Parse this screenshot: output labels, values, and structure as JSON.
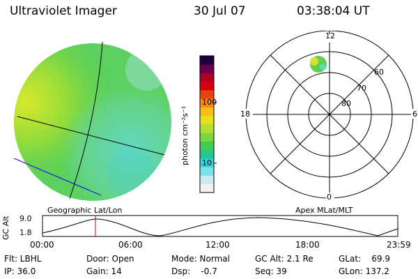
{
  "header": {
    "title": "Ultraviolet Imager",
    "date": "30 Jul 07",
    "time": "03:38:04 UT"
  },
  "colorbar": {
    "label": "photon cm⁻²s⁻¹",
    "ticks": [
      "100",
      "10"
    ],
    "colors": [
      "#f2f2f2",
      "#c8ecf0",
      "#7ce0e6",
      "#2fd4d8",
      "#22c890",
      "#40cc50",
      "#7ad640",
      "#b0e030",
      "#e6e020",
      "#f6c018",
      "#f48a10",
      "#e84410",
      "#d80010",
      "#b00028",
      "#6a0050",
      "#20003c"
    ]
  },
  "geo_panel": {
    "label": "Geographic Lat/Lon"
  },
  "apex_panel": {
    "label": "Apex MLat/MLT",
    "mlt_labels": [
      "12",
      "18",
      "6",
      "0"
    ],
    "mlat_labels": [
      "60",
      "70",
      "80"
    ]
  },
  "timeline": {
    "axis_label": "GC Alt",
    "y_ticks": [
      "9.0",
      "1.8"
    ],
    "x_ticks": [
      "00:00",
      "06:00",
      "12:00",
      "18:00",
      "23:59"
    ],
    "cursor_color": "#cc0000"
  },
  "status": {
    "filter": "Flt: LBHL",
    "ip": "IP: 36.0",
    "door": "Door: Open",
    "gain": "Gain: 14",
    "mode": "Mode: Normal",
    "dsp": "Dsp:    -0.7",
    "gc_alt": "GC Alt: 2.1 Re",
    "seq": "Seq: 39",
    "glat": "GLat:    69.9",
    "glon": "GLon: 137.2"
  }
}
